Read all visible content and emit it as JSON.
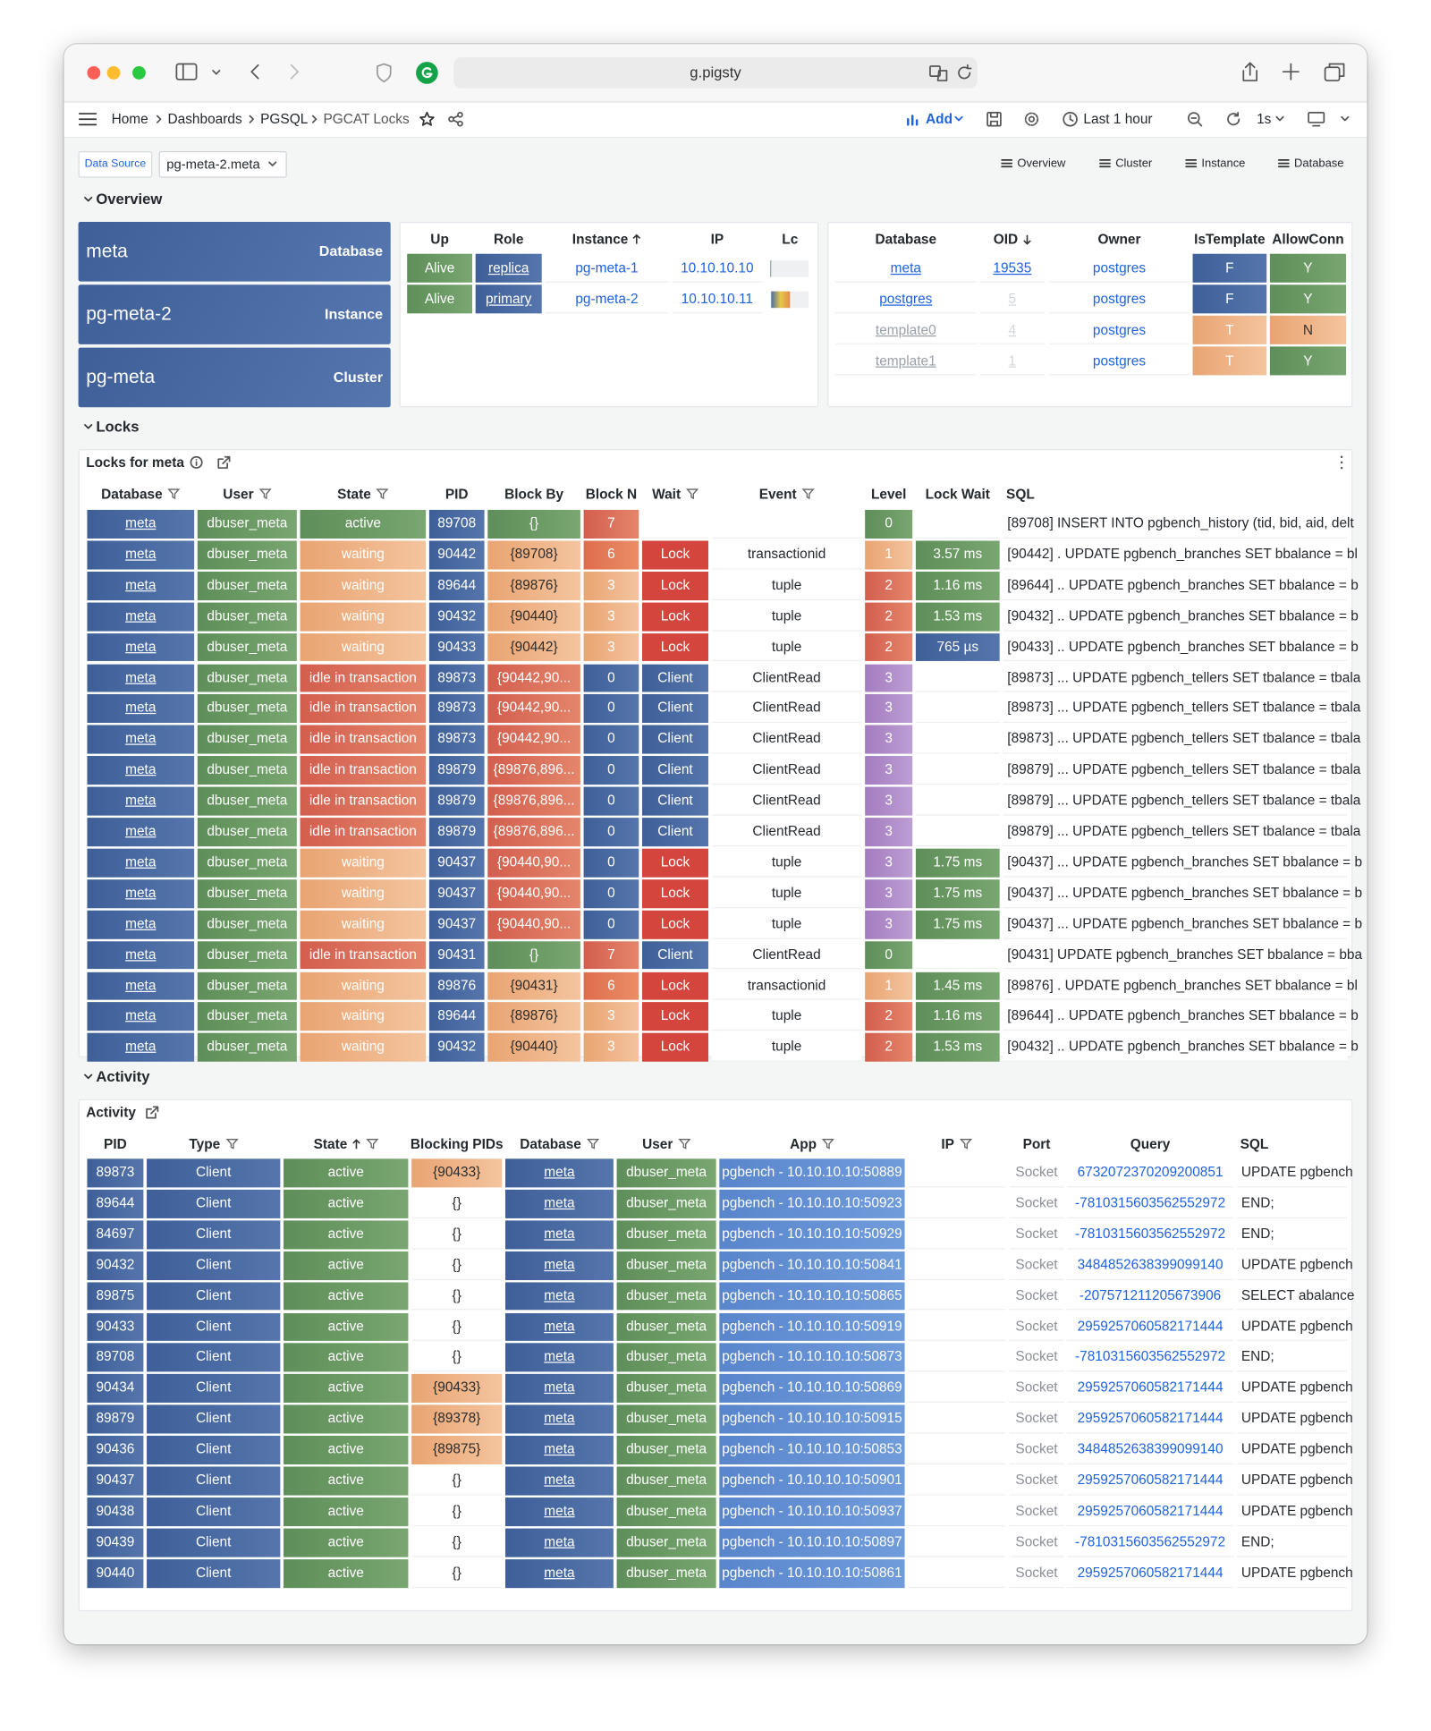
{
  "browser": {
    "url": "g.pigsty"
  },
  "breadcrumb": [
    "Home",
    "Dashboards",
    "PGSQL",
    "PGCAT Locks"
  ],
  "toolbar": {
    "add": "Add",
    "time_range": "Last 1 hour",
    "refresh": "1s"
  },
  "variables": {
    "label": "Data Source",
    "value": "pg-meta-2.meta"
  },
  "links": [
    "Overview",
    "Cluster",
    "Instance",
    "Database"
  ],
  "sections": {
    "overview": "Overview",
    "locks": "Locks",
    "activity": "Activity"
  },
  "stats": [
    {
      "value": "meta",
      "label": "Database"
    },
    {
      "value": "pg-meta-2",
      "label": "Instance"
    },
    {
      "value": "pg-meta",
      "label": "Cluster"
    }
  ],
  "instances": {
    "columns": [
      "Up",
      "Role",
      "Instance",
      "IP",
      "Lc"
    ],
    "rows": [
      [
        "Alive",
        "replica",
        "pg-meta-1",
        "10.10.10.10"
      ],
      [
        "Alive",
        "primary",
        "pg-meta-2",
        "10.10.10.11"
      ]
    ]
  },
  "databases": {
    "columns": [
      "Database",
      "OID",
      "Owner",
      "IsTemplate",
      "AllowConn"
    ],
    "rows": [
      [
        "meta",
        19535,
        "postgres",
        "F",
        "Y"
      ],
      [
        "postgres",
        5,
        "postgres",
        "F",
        "Y"
      ],
      [
        "template0",
        4,
        "postgres",
        "T",
        "N"
      ],
      [
        "template1",
        1,
        "postgres",
        "T",
        "Y"
      ]
    ]
  },
  "locks": {
    "title": "Locks for meta",
    "columns": [
      "Database",
      "User",
      "State",
      "PID",
      "Block By",
      "Block N",
      "Wait",
      "Event",
      "Level",
      "Lock Wait",
      "SQL"
    ],
    "rows": [
      [
        "meta",
        "dbuser_meta",
        "active",
        89708,
        "{}",
        7,
        null,
        null,
        0,
        null,
        "[89708] INSERT INTO pgbench_history (tid, bid, aid, delt"
      ],
      [
        "meta",
        "dbuser_meta",
        "waiting",
        90442,
        "{89708}",
        6,
        "Lock",
        "transactionid",
        1,
        "3.57 ms",
        "[90442] . UPDATE pgbench_branches SET bbalance = bl"
      ],
      [
        "meta",
        "dbuser_meta",
        "waiting",
        89644,
        "{89876}",
        3,
        "Lock",
        "tuple",
        2,
        "1.16 ms",
        "[89644] .. UPDATE pgbench_branches SET bbalance = b"
      ],
      [
        "meta",
        "dbuser_meta",
        "waiting",
        90432,
        "{90440}",
        3,
        "Lock",
        "tuple",
        2,
        "1.53 ms",
        "[90432] .. UPDATE pgbench_branches SET bbalance = b"
      ],
      [
        "meta",
        "dbuser_meta",
        "waiting",
        90433,
        "{90442}",
        3,
        "Lock",
        "tuple",
        2,
        "765 µs",
        "[90433] .. UPDATE pgbench_branches SET bbalance = b"
      ],
      [
        "meta",
        "dbuser_meta",
        "idle in transaction",
        89873,
        "{90442,90...",
        0,
        "Client",
        "ClientRead",
        3,
        null,
        "[89873] ... UPDATE pgbench_tellers SET tbalance = tbala"
      ],
      [
        "meta",
        "dbuser_meta",
        "idle in transaction",
        89873,
        "{90442,90...",
        0,
        "Client",
        "ClientRead",
        3,
        null,
        "[89873] ... UPDATE pgbench_tellers SET tbalance = tbala"
      ],
      [
        "meta",
        "dbuser_meta",
        "idle in transaction",
        89873,
        "{90442,90...",
        0,
        "Client",
        "ClientRead",
        3,
        null,
        "[89873] ... UPDATE pgbench_tellers SET tbalance = tbala"
      ],
      [
        "meta",
        "dbuser_meta",
        "idle in transaction",
        89879,
        "{89876,896...",
        0,
        "Client",
        "ClientRead",
        3,
        null,
        "[89879] ... UPDATE pgbench_tellers SET tbalance = tbala"
      ],
      [
        "meta",
        "dbuser_meta",
        "idle in transaction",
        89879,
        "{89876,896...",
        0,
        "Client",
        "ClientRead",
        3,
        null,
        "[89879] ... UPDATE pgbench_tellers SET tbalance = tbala"
      ],
      [
        "meta",
        "dbuser_meta",
        "idle in transaction",
        89879,
        "{89876,896...",
        0,
        "Client",
        "ClientRead",
        3,
        null,
        "[89879] ... UPDATE pgbench_tellers SET tbalance = tbala"
      ],
      [
        "meta",
        "dbuser_meta",
        "waiting",
        90437,
        "{90440,90...",
        0,
        "Lock",
        "tuple",
        3,
        "1.75 ms",
        "[90437] ... UPDATE pgbench_branches SET bbalance = b"
      ],
      [
        "meta",
        "dbuser_meta",
        "waiting",
        90437,
        "{90440,90...",
        0,
        "Lock",
        "tuple",
        3,
        "1.75 ms",
        "[90437] ... UPDATE pgbench_branches SET bbalance = b"
      ],
      [
        "meta",
        "dbuser_meta",
        "waiting",
        90437,
        "{90440,90...",
        0,
        "Lock",
        "tuple",
        3,
        "1.75 ms",
        "[90437] ... UPDATE pgbench_branches SET bbalance = b"
      ],
      [
        "meta",
        "dbuser_meta",
        "idle in transaction",
        90431,
        "{}",
        7,
        "Client",
        "ClientRead",
        0,
        null,
        "[90431] UPDATE pgbench_branches SET bbalance = bba"
      ],
      [
        "meta",
        "dbuser_meta",
        "waiting",
        89876,
        "{90431}",
        6,
        "Lock",
        "transactionid",
        1,
        "1.45 ms",
        "[89876] . UPDATE pgbench_branches SET bbalance = bl"
      ],
      [
        "meta",
        "dbuser_meta",
        "waiting",
        89644,
        "{89876}",
        3,
        "Lock",
        "tuple",
        2,
        "1.16 ms",
        "[89644] .. UPDATE pgbench_branches SET bbalance = b"
      ],
      [
        "meta",
        "dbuser_meta",
        "waiting",
        90432,
        "{90440}",
        3,
        "Lock",
        "tuple",
        2,
        "1.53 ms",
        "[90432] .. UPDATE pgbench_branches SET bbalance = b"
      ]
    ]
  },
  "activity": {
    "title": "Activity",
    "columns": [
      "PID",
      "Type",
      "State",
      "Blocking PIDs",
      "Database",
      "User",
      "App",
      "IP",
      "Port",
      "Query",
      "SQL"
    ],
    "rows": [
      [
        89873,
        "Client",
        "active",
        "{90433}",
        "meta",
        "dbuser_meta",
        "pgbench - 10.10.10.10:50889",
        null,
        "Socket",
        "6732072370209200851",
        "UPDATE pgbench"
      ],
      [
        89644,
        "Client",
        "active",
        "{}",
        "meta",
        "dbuser_meta",
        "pgbench - 10.10.10.10:50923",
        null,
        "Socket",
        "-7810315603562552972",
        "END;"
      ],
      [
        84697,
        "Client",
        "active",
        "{}",
        "meta",
        "dbuser_meta",
        "pgbench - 10.10.10.10:50929",
        null,
        "Socket",
        "-7810315603562552972",
        "END;"
      ],
      [
        90432,
        "Client",
        "active",
        "{}",
        "meta",
        "dbuser_meta",
        "pgbench - 10.10.10.10:50841",
        null,
        "Socket",
        "3484852638399099140",
        "UPDATE pgbench"
      ],
      [
        89875,
        "Client",
        "active",
        "{}",
        "meta",
        "dbuser_meta",
        "pgbench - 10.10.10.10:50865",
        null,
        "Socket",
        "-207571211205673906",
        "SELECT abalance"
      ],
      [
        90433,
        "Client",
        "active",
        "{}",
        "meta",
        "dbuser_meta",
        "pgbench - 10.10.10.10:50919",
        null,
        "Socket",
        "2959257060582171444",
        "UPDATE pgbench"
      ],
      [
        89708,
        "Client",
        "active",
        "{}",
        "meta",
        "dbuser_meta",
        "pgbench - 10.10.10.10:50873",
        null,
        "Socket",
        "-7810315603562552972",
        "END;"
      ],
      [
        90434,
        "Client",
        "active",
        "{90433}",
        "meta",
        "dbuser_meta",
        "pgbench - 10.10.10.10:50869",
        null,
        "Socket",
        "2959257060582171444",
        "UPDATE pgbench"
      ],
      [
        89879,
        "Client",
        "active",
        "{89378}",
        "meta",
        "dbuser_meta",
        "pgbench - 10.10.10.10:50915",
        null,
        "Socket",
        "2959257060582171444",
        "UPDATE pgbench"
      ],
      [
        90436,
        "Client",
        "active",
        "{89875}",
        "meta",
        "dbuser_meta",
        "pgbench - 10.10.10.10:50853",
        null,
        "Socket",
        "3484852638399099140",
        "UPDATE pgbench"
      ],
      [
        90437,
        "Client",
        "active",
        "{}",
        "meta",
        "dbuser_meta",
        "pgbench - 10.10.10.10:50901",
        null,
        "Socket",
        "2959257060582171444",
        "UPDATE pgbench"
      ],
      [
        90438,
        "Client",
        "active",
        "{}",
        "meta",
        "dbuser_meta",
        "pgbench - 10.10.10.10:50937",
        null,
        "Socket",
        "2959257060582171444",
        "UPDATE pgbench"
      ],
      [
        90439,
        "Client",
        "active",
        "{}",
        "meta",
        "dbuser_meta",
        "pgbench - 10.10.10.10:50897",
        null,
        "Socket",
        "-7810315603562552972",
        "END;"
      ],
      [
        90440,
        "Client",
        "active",
        "{}",
        "meta",
        "dbuser_meta",
        "pgbench - 10.10.10.10:50861",
        null,
        "Socket",
        "2959257060582171444",
        "UPDATE pgbench"
      ]
    ]
  }
}
